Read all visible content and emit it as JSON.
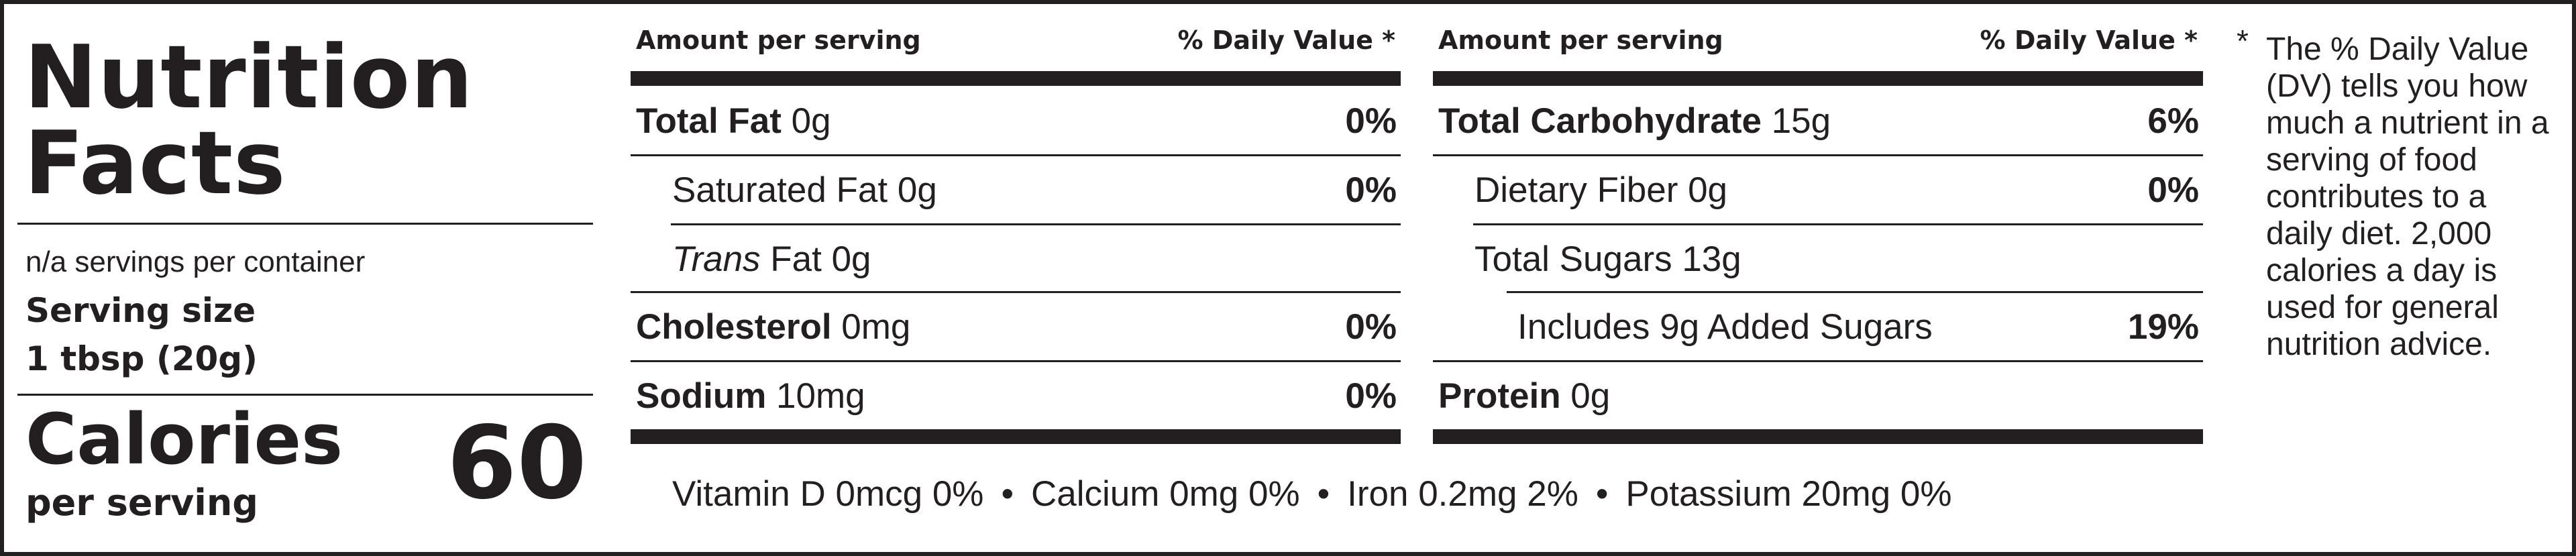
{
  "title": {
    "line1": "Nutrition",
    "line2": "Facts"
  },
  "servings_per_container": "n/a servings per container",
  "serving_size": {
    "label": "Serving size",
    "value": "1 tbsp (20g)"
  },
  "calories": {
    "label": "Calories",
    "sublabel": "per serving",
    "value": "60"
  },
  "columns": [
    {
      "header_left": "Amount per serving",
      "header_right": "% Daily Value *",
      "rows": [
        {
          "name": "Total Fat",
          "amount": " 0g",
          "dv": "0%"
        },
        {
          "name": "Saturated Fat 0g",
          "dv": "0%"
        },
        {
          "name": "Trans",
          "amount": " Fat 0g",
          "dv": ""
        },
        {
          "name": "Cholesterol",
          "amount": " 0mg",
          "dv": "0%"
        },
        {
          "name": "Sodium",
          "amount": " 10mg",
          "dv": "0%"
        }
      ]
    },
    {
      "header_left": "Amount per serving",
      "header_right": "% Daily Value *",
      "rows": [
        {
          "name": "Total Carbohydrate",
          "amount": " 15g",
          "dv": "6%"
        },
        {
          "name": "Dietary Fiber 0g",
          "dv": "0%"
        },
        {
          "name": "Total Sugars 13g",
          "dv": ""
        },
        {
          "name": "Includes 9g Added Sugars",
          "dv": "19%"
        },
        {
          "name": "Protein",
          "amount": " 0g",
          "dv": ""
        }
      ]
    }
  ],
  "vitamins": [
    "Vitamin D 0mcg 0%",
    "Calcium 0mg 0%",
    "Iron 0.2mg 2%",
    "Potassium 20mg 0%"
  ],
  "vitamin_separator": "•",
  "footnote": {
    "star": "*",
    "text": "The % Daily Value (DV) tells you how much a nutrient in a serving of food contributes to a daily diet. 2,000 calories a day is used for general nutrition advice."
  }
}
